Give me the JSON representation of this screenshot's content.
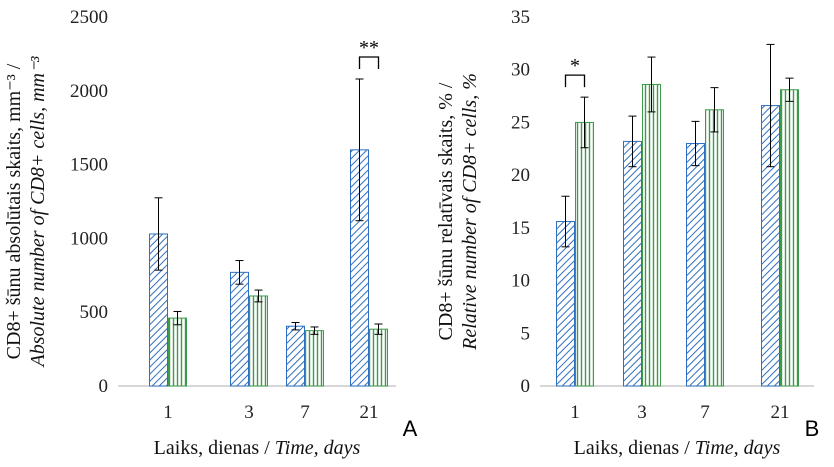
{
  "colors": {
    "series1_stroke": "#2f6fbf",
    "series2_stroke": "#3c9a4a",
    "axis": "#bfbfbf",
    "gridline": "#d9d9d9",
    "errorbar": "#000000"
  },
  "chart_data": [
    {
      "id": "A",
      "type": "bar",
      "panel_label": "A",
      "categories": [
        "1",
        "3",
        "7",
        "21"
      ],
      "series": [
        {
          "values": [
            1030,
            770,
            405,
            1600
          ],
          "errors": [
            245,
            80,
            25,
            480
          ],
          "pattern": "diagonal-hatch-blue"
        },
        {
          "values": [
            460,
            610,
            375,
            385
          ],
          "errors": [
            45,
            40,
            25,
            35
          ],
          "pattern": "vertical-hatch-green"
        }
      ],
      "ylim": [
        0,
        2500
      ],
      "yticks": [
        "0",
        "500",
        "1000",
        "1500",
        "2000",
        "2500"
      ],
      "ytick_values": [
        0,
        500,
        1000,
        1500,
        2000,
        2500
      ],
      "ylabel_line1": "CD8+ šūnu absolūtais skaits, mm⁻³ /",
      "ylabel_line2": "Absolute number of CD8+ cells, mm⁻³",
      "xlabel_plain": "Laiks, dienas / ",
      "xlabel_italic": "Time, days",
      "grid": false,
      "significance": [
        {
          "category_index": 3,
          "label": "**"
        }
      ]
    },
    {
      "id": "B",
      "type": "bar",
      "panel_label": "B",
      "categories": [
        "1",
        "3",
        "7",
        "21"
      ],
      "series": [
        {
          "values": [
            15.6,
            23.2,
            23.0,
            26.6
          ],
          "errors": [
            2.4,
            2.4,
            2.1,
            5.8
          ],
          "pattern": "diagonal-hatch-blue"
        },
        {
          "values": [
            25.0,
            28.6,
            26.2,
            28.1
          ],
          "errors": [
            2.4,
            2.6,
            2.1,
            1.1
          ],
          "pattern": "vertical-hatch-green"
        }
      ],
      "ylim": [
        0,
        35
      ],
      "yticks": [
        "0",
        "5",
        "10",
        "15",
        "20",
        "25",
        "30",
        "35"
      ],
      "ytick_values": [
        0,
        5,
        10,
        15,
        20,
        25,
        30,
        35
      ],
      "ylabel_line1": "CD8+ šūnu relatīvais skaits, % /",
      "ylabel_line2": "Relative number of CD8+ cells, %",
      "xlabel_plain": "Laiks, dienas / ",
      "xlabel_italic": "Time, days",
      "grid": false,
      "significance": [
        {
          "category_index": 0,
          "label": "*"
        }
      ]
    }
  ]
}
